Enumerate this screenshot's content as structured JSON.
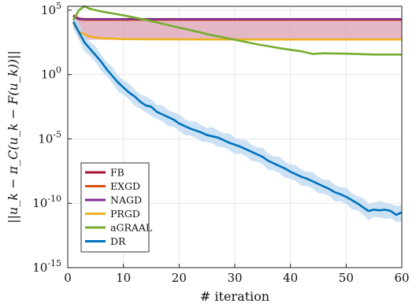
{
  "chart_data": {
    "type": "line",
    "xlabel": "# iteration",
    "ylabel": "||u_k − π_C(u_k − F(u_k))||",
    "xlim": [
      0,
      60
    ],
    "ylim_log10": [
      -15,
      5.3
    ],
    "yscale": "log",
    "x_ticks": [
      "0",
      "10",
      "20",
      "30",
      "40",
      "50",
      "60"
    ],
    "y_ticks": [
      {
        "base": "10",
        "exp": "-15",
        "log10": -15
      },
      {
        "base": "10",
        "exp": "-10",
        "log10": -10
      },
      {
        "base": "10",
        "exp": "-5",
        "log10": -5
      },
      {
        "base": "10",
        "exp": "0",
        "log10": 0
      },
      {
        "base": "10",
        "exp": "5",
        "log10": 5
      }
    ],
    "grid": true,
    "legend_position": "bottom-left",
    "series": [
      {
        "name": "FB",
        "color": "#A2142F",
        "x": [
          1,
          2,
          3,
          60
        ],
        "log10_y": [
          4.6,
          4.35,
          4.3,
          4.3
        ],
        "band": {
          "lower_log10": 2.7,
          "upper_log10": 4.4,
          "color": "#D9A0B0"
        }
      },
      {
        "name": "EXGD",
        "color": "#D95319",
        "x": [
          1,
          2,
          3,
          60
        ],
        "log10_y": [
          4.55,
          4.3,
          4.25,
          4.25
        ]
      },
      {
        "name": "NAGD",
        "color": "#7E2F8E",
        "x": [
          1,
          2,
          3,
          60
        ],
        "log10_y": [
          4.5,
          4.3,
          4.3,
          4.3
        ]
      },
      {
        "name": "PRGD",
        "color": "#EDB120",
        "x": [
          1,
          2,
          4,
          6,
          10,
          20,
          30,
          40,
          50,
          60
        ],
        "log10_y": [
          4.0,
          3.3,
          2.95,
          2.82,
          2.75,
          2.73,
          2.72,
          2.72,
          2.72,
          2.72
        ]
      },
      {
        "name": "aGRAAL",
        "color": "#77AC30",
        "x": [
          1,
          2,
          3,
          4,
          6,
          8,
          10,
          14,
          18,
          22,
          26,
          30,
          34,
          38,
          42,
          44,
          46,
          50,
          55,
          60
        ],
        "log10_y": [
          4.2,
          5.0,
          5.3,
          5.1,
          4.9,
          4.75,
          4.6,
          4.25,
          3.85,
          3.45,
          3.05,
          2.7,
          2.35,
          2.05,
          1.8,
          1.6,
          1.65,
          1.62,
          1.55,
          1.55
        ]
      },
      {
        "name": "DR",
        "color": "#0072BD",
        "x": [
          1,
          2,
          3,
          4,
          5,
          6,
          7,
          8,
          9,
          10,
          11,
          12,
          13,
          14,
          15,
          16,
          17,
          18,
          19,
          20,
          21,
          22,
          23,
          24,
          25,
          26,
          27,
          28,
          29,
          30,
          31,
          32,
          33,
          34,
          35,
          36,
          37,
          38,
          39,
          40,
          41,
          42,
          43,
          44,
          45,
          46,
          47,
          48,
          49,
          50,
          51,
          52,
          53,
          54,
          55,
          56,
          57,
          58,
          59,
          60
        ],
        "log10_y": [
          4.1,
          3.3,
          2.5,
          2.0,
          1.5,
          1.0,
          0.4,
          -0.1,
          -0.6,
          -1.0,
          -1.4,
          -1.7,
          -2.1,
          -2.4,
          -2.5,
          -2.9,
          -3.1,
          -3.3,
          -3.5,
          -3.8,
          -4.0,
          -4.2,
          -4.35,
          -4.5,
          -4.7,
          -4.8,
          -4.9,
          -5.1,
          -5.3,
          -5.45,
          -5.6,
          -5.8,
          -6.0,
          -6.2,
          -6.4,
          -6.7,
          -6.9,
          -7.1,
          -7.3,
          -7.55,
          -7.75,
          -7.95,
          -8.1,
          -8.3,
          -8.5,
          -8.7,
          -8.9,
          -9.15,
          -9.3,
          -9.5,
          -9.75,
          -10.0,
          -10.3,
          -10.6,
          -10.5,
          -10.55,
          -10.5,
          -10.6,
          -10.9,
          -10.7
        ],
        "band_halfwidth_log10": 0.55,
        "band_color": "#BFDBF1"
      }
    ]
  }
}
